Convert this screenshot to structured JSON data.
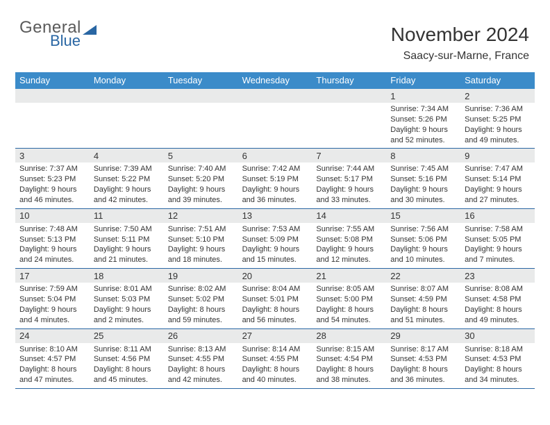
{
  "brand": {
    "word1": "General",
    "word2": "Blue"
  },
  "header": {
    "title": "November 2024",
    "location": "Saacy-sur-Marne, France"
  },
  "colors": {
    "header_bar": "#3b8bc9",
    "week_divider": "#2966a3",
    "day_band": "#e9eaea",
    "text": "#333333",
    "brand_blue": "#2966a3",
    "brand_gray": "#5a5a5a"
  },
  "day_headers": [
    "Sunday",
    "Monday",
    "Tuesday",
    "Wednesday",
    "Thursday",
    "Friday",
    "Saturday"
  ],
  "weeks": [
    [
      {
        "n": "",
        "sr": "",
        "ss": "",
        "dl": ""
      },
      {
        "n": "",
        "sr": "",
        "ss": "",
        "dl": ""
      },
      {
        "n": "",
        "sr": "",
        "ss": "",
        "dl": ""
      },
      {
        "n": "",
        "sr": "",
        "ss": "",
        "dl": ""
      },
      {
        "n": "",
        "sr": "",
        "ss": "",
        "dl": ""
      },
      {
        "n": "1",
        "sr": "Sunrise: 7:34 AM",
        "ss": "Sunset: 5:26 PM",
        "dl": "Daylight: 9 hours and 52 minutes."
      },
      {
        "n": "2",
        "sr": "Sunrise: 7:36 AM",
        "ss": "Sunset: 5:25 PM",
        "dl": "Daylight: 9 hours and 49 minutes."
      }
    ],
    [
      {
        "n": "3",
        "sr": "Sunrise: 7:37 AM",
        "ss": "Sunset: 5:23 PM",
        "dl": "Daylight: 9 hours and 46 minutes."
      },
      {
        "n": "4",
        "sr": "Sunrise: 7:39 AM",
        "ss": "Sunset: 5:22 PM",
        "dl": "Daylight: 9 hours and 42 minutes."
      },
      {
        "n": "5",
        "sr": "Sunrise: 7:40 AM",
        "ss": "Sunset: 5:20 PM",
        "dl": "Daylight: 9 hours and 39 minutes."
      },
      {
        "n": "6",
        "sr": "Sunrise: 7:42 AM",
        "ss": "Sunset: 5:19 PM",
        "dl": "Daylight: 9 hours and 36 minutes."
      },
      {
        "n": "7",
        "sr": "Sunrise: 7:44 AM",
        "ss": "Sunset: 5:17 PM",
        "dl": "Daylight: 9 hours and 33 minutes."
      },
      {
        "n": "8",
        "sr": "Sunrise: 7:45 AM",
        "ss": "Sunset: 5:16 PM",
        "dl": "Daylight: 9 hours and 30 minutes."
      },
      {
        "n": "9",
        "sr": "Sunrise: 7:47 AM",
        "ss": "Sunset: 5:14 PM",
        "dl": "Daylight: 9 hours and 27 minutes."
      }
    ],
    [
      {
        "n": "10",
        "sr": "Sunrise: 7:48 AM",
        "ss": "Sunset: 5:13 PM",
        "dl": "Daylight: 9 hours and 24 minutes."
      },
      {
        "n": "11",
        "sr": "Sunrise: 7:50 AM",
        "ss": "Sunset: 5:11 PM",
        "dl": "Daylight: 9 hours and 21 minutes."
      },
      {
        "n": "12",
        "sr": "Sunrise: 7:51 AM",
        "ss": "Sunset: 5:10 PM",
        "dl": "Daylight: 9 hours and 18 minutes."
      },
      {
        "n": "13",
        "sr": "Sunrise: 7:53 AM",
        "ss": "Sunset: 5:09 PM",
        "dl": "Daylight: 9 hours and 15 minutes."
      },
      {
        "n": "14",
        "sr": "Sunrise: 7:55 AM",
        "ss": "Sunset: 5:08 PM",
        "dl": "Daylight: 9 hours and 12 minutes."
      },
      {
        "n": "15",
        "sr": "Sunrise: 7:56 AM",
        "ss": "Sunset: 5:06 PM",
        "dl": "Daylight: 9 hours and 10 minutes."
      },
      {
        "n": "16",
        "sr": "Sunrise: 7:58 AM",
        "ss": "Sunset: 5:05 PM",
        "dl": "Daylight: 9 hours and 7 minutes."
      }
    ],
    [
      {
        "n": "17",
        "sr": "Sunrise: 7:59 AM",
        "ss": "Sunset: 5:04 PM",
        "dl": "Daylight: 9 hours and 4 minutes."
      },
      {
        "n": "18",
        "sr": "Sunrise: 8:01 AM",
        "ss": "Sunset: 5:03 PM",
        "dl": "Daylight: 9 hours and 2 minutes."
      },
      {
        "n": "19",
        "sr": "Sunrise: 8:02 AM",
        "ss": "Sunset: 5:02 PM",
        "dl": "Daylight: 8 hours and 59 minutes."
      },
      {
        "n": "20",
        "sr": "Sunrise: 8:04 AM",
        "ss": "Sunset: 5:01 PM",
        "dl": "Daylight: 8 hours and 56 minutes."
      },
      {
        "n": "21",
        "sr": "Sunrise: 8:05 AM",
        "ss": "Sunset: 5:00 PM",
        "dl": "Daylight: 8 hours and 54 minutes."
      },
      {
        "n": "22",
        "sr": "Sunrise: 8:07 AM",
        "ss": "Sunset: 4:59 PM",
        "dl": "Daylight: 8 hours and 51 minutes."
      },
      {
        "n": "23",
        "sr": "Sunrise: 8:08 AM",
        "ss": "Sunset: 4:58 PM",
        "dl": "Daylight: 8 hours and 49 minutes."
      }
    ],
    [
      {
        "n": "24",
        "sr": "Sunrise: 8:10 AM",
        "ss": "Sunset: 4:57 PM",
        "dl": "Daylight: 8 hours and 47 minutes."
      },
      {
        "n": "25",
        "sr": "Sunrise: 8:11 AM",
        "ss": "Sunset: 4:56 PM",
        "dl": "Daylight: 8 hours and 45 minutes."
      },
      {
        "n": "26",
        "sr": "Sunrise: 8:13 AM",
        "ss": "Sunset: 4:55 PM",
        "dl": "Daylight: 8 hours and 42 minutes."
      },
      {
        "n": "27",
        "sr": "Sunrise: 8:14 AM",
        "ss": "Sunset: 4:55 PM",
        "dl": "Daylight: 8 hours and 40 minutes."
      },
      {
        "n": "28",
        "sr": "Sunrise: 8:15 AM",
        "ss": "Sunset: 4:54 PM",
        "dl": "Daylight: 8 hours and 38 minutes."
      },
      {
        "n": "29",
        "sr": "Sunrise: 8:17 AM",
        "ss": "Sunset: 4:53 PM",
        "dl": "Daylight: 8 hours and 36 minutes."
      },
      {
        "n": "30",
        "sr": "Sunrise: 8:18 AM",
        "ss": "Sunset: 4:53 PM",
        "dl": "Daylight: 8 hours and 34 minutes."
      }
    ]
  ]
}
